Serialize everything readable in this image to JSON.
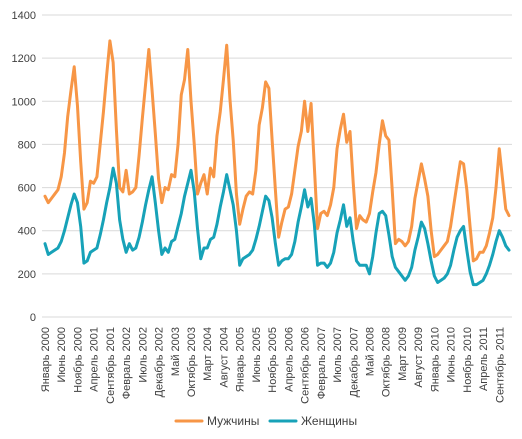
{
  "chart_data": {
    "type": "line",
    "title": "",
    "xlabel": "",
    "ylabel": "",
    "ylim": [
      0,
      1400
    ],
    "yticks": [
      0,
      200,
      400,
      600,
      800,
      1000,
      1200,
      1400
    ],
    "grid": true,
    "legend_position": "bottom",
    "x_start": "Январь 2000",
    "x_tick_labels": [
      "Январь 2000",
      "Июнь 2000",
      "Ноябрь 2000",
      "Апрель 2001",
      "Сентябрь 2001",
      "Февраль 2002",
      "Июль 2002",
      "Декабрь 2002",
      "Май 2003",
      "Октябрь 2003",
      "Март 2004",
      "Август 2004",
      "Январь 2005",
      "Июнь 2005",
      "Ноябрь 2005",
      "Апрель 2006",
      "Сентябрь 2006",
      "Февраль 2007",
      "Июль 2007",
      "Декабрь 2007",
      "Май 2008",
      "Октябрь 2008",
      "Март 2009",
      "Август 2009",
      "Январь 2010",
      "Июнь 2010",
      "Ноябрь 2010",
      "Апрель 2011",
      "Сентябрь 2011"
    ],
    "series": [
      {
        "name": "Мужчины",
        "color": "#f79646",
        "values": [
          560,
          530,
          550,
          570,
          590,
          650,
          760,
          930,
          1050,
          1160,
          980,
          720,
          500,
          530,
          630,
          620,
          650,
          800,
          950,
          1120,
          1280,
          1180,
          870,
          600,
          580,
          680,
          570,
          580,
          600,
          750,
          920,
          1080,
          1240,
          1050,
          850,
          640,
          530,
          600,
          590,
          660,
          650,
          800,
          1030,
          1100,
          1240,
          1000,
          800,
          570,
          620,
          660,
          570,
          690,
          650,
          840,
          950,
          1100,
          1260,
          1010,
          820,
          570,
          430,
          500,
          560,
          580,
          570,
          680,
          890,
          970,
          1090,
          1060,
          820,
          590,
          370,
          440,
          500,
          510,
          570,
          680,
          790,
          860,
          1000,
          860,
          990,
          700,
          410,
          480,
          490,
          470,
          520,
          600,
          780,
          870,
          940,
          810,
          860,
          620,
          410,
          470,
          450,
          440,
          480,
          580,
          670,
          800,
          910,
          840,
          820,
          590,
          340,
          360,
          350,
          330,
          350,
          420,
          550,
          630,
          710,
          640,
          560,
          400,
          280,
          290,
          310,
          330,
          350,
          420,
          520,
          620,
          720,
          710,
          590,
          420,
          260,
          270,
          300,
          300,
          330,
          390,
          460,
          600,
          780,
          640,
          500,
          470
        ]
      },
      {
        "name": "Женщины",
        "color": "#17a2b8",
        "values": [
          340,
          290,
          300,
          310,
          320,
          350,
          400,
          460,
          520,
          570,
          530,
          420,
          250,
          260,
          300,
          310,
          320,
          380,
          450,
          530,
          600,
          690,
          620,
          450,
          360,
          300,
          340,
          310,
          320,
          370,
          440,
          520,
          590,
          650,
          530,
          400,
          290,
          320,
          300,
          350,
          360,
          420,
          480,
          560,
          620,
          680,
          580,
          410,
          270,
          320,
          320,
          360,
          370,
          430,
          510,
          580,
          660,
          590,
          520,
          400,
          240,
          270,
          280,
          290,
          310,
          360,
          420,
          490,
          560,
          540,
          460,
          340,
          240,
          260,
          270,
          270,
          290,
          350,
          440,
          510,
          590,
          510,
          550,
          430,
          240,
          250,
          250,
          230,
          250,
          300,
          390,
          450,
          520,
          420,
          460,
          350,
          260,
          240,
          240,
          240,
          200,
          280,
          390,
          480,
          490,
          470,
          380,
          280,
          230,
          210,
          190,
          170,
          190,
          230,
          310,
          370,
          440,
          410,
          340,
          260,
          190,
          160,
          170,
          180,
          200,
          240,
          310,
          370,
          400,
          420,
          310,
          210,
          150,
          150,
          160,
          170,
          200,
          240,
          290,
          350,
          400,
          370,
          330,
          310
        ]
      }
    ]
  }
}
